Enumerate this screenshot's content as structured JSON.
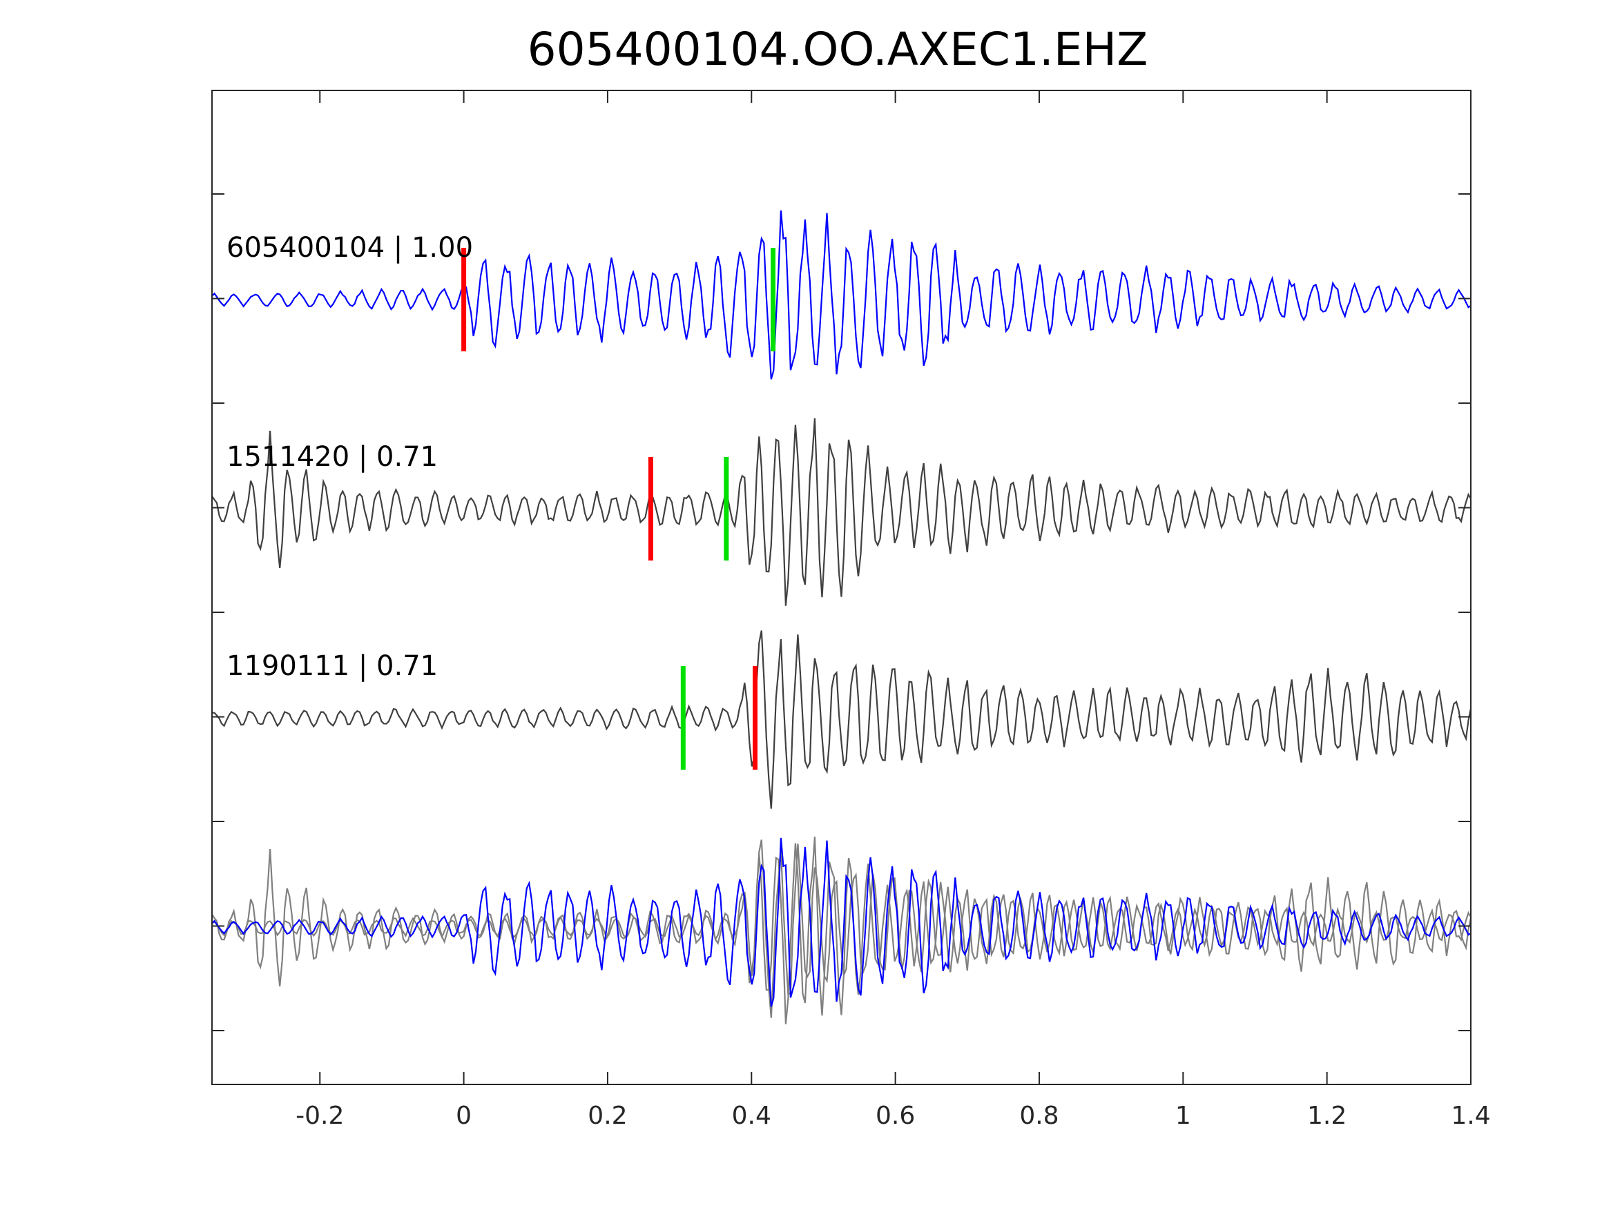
{
  "chart_data": {
    "type": "line",
    "title": "605400104.OO.AXEC1.EHZ",
    "xlim": [
      -0.35,
      1.4
    ],
    "xticks": [
      -0.2,
      0,
      0.2,
      0.4,
      0.6,
      0.8,
      1,
      1.2,
      1.4
    ],
    "xtick_labels": [
      "-0.2",
      "0",
      "0.2",
      "0.4",
      "0.6",
      "0.8",
      "1",
      "1.2",
      "1.4"
    ],
    "xlabel": "",
    "ylabel": "",
    "grid": false,
    "colors": {
      "reference_trace": "#0000ff",
      "matched_trace": "#404040",
      "overlay_trace": "#808080",
      "p_pick": "#ff0000",
      "s_pick": "#00e000",
      "axis": "#262626"
    },
    "traces": [
      {
        "label": "605400104 | 1.00",
        "event_id": "605400104",
        "correlation": 1.0,
        "baseline": 0,
        "color": "reference_trace",
        "p_pick": 0.0,
        "s_pick": 0.43,
        "noise_amp": 0.06,
        "envelope": [
          [
            -0.35,
            0.06
          ],
          [
            0.0,
            0.12
          ],
          [
            0.02,
            0.5
          ],
          [
            0.3,
            0.4
          ],
          [
            0.36,
            0.55
          ],
          [
            0.42,
            0.95
          ],
          [
            0.46,
            1.0
          ],
          [
            0.55,
            0.75
          ],
          [
            0.65,
            0.7
          ],
          [
            0.7,
            0.4
          ],
          [
            0.95,
            0.35
          ],
          [
            1.1,
            0.25
          ],
          [
            1.4,
            0.1
          ]
        ],
        "period": 0.03
      },
      {
        "label": "1511420 | 0.71",
        "event_id": "1511420",
        "correlation": 0.71,
        "baseline": -1,
        "color": "matched_trace",
        "p_pick": 0.26,
        "s_pick": 0.365,
        "noise_amp": 0.15,
        "envelope": [
          [
            -0.35,
            0.15
          ],
          [
            -0.3,
            0.2
          ],
          [
            -0.27,
            0.8
          ],
          [
            -0.24,
            0.5
          ],
          [
            -0.2,
            0.3
          ],
          [
            0.0,
            0.15
          ],
          [
            0.38,
            0.2
          ],
          [
            0.41,
            1.0
          ],
          [
            0.53,
            0.9
          ],
          [
            0.58,
            0.5
          ],
          [
            0.68,
            0.45
          ],
          [
            0.9,
            0.25
          ],
          [
            1.4,
            0.15
          ]
        ],
        "period": 0.026
      },
      {
        "label": "1190111 | 0.71",
        "event_id": "1190111",
        "correlation": 0.71,
        "baseline": -2,
        "color": "matched_trace",
        "p_pick": 0.405,
        "s_pick": 0.305,
        "noise_amp": 0.1,
        "envelope": [
          [
            -0.35,
            0.08
          ],
          [
            0.38,
            0.12
          ],
          [
            0.41,
            1.0
          ],
          [
            0.47,
            0.8
          ],
          [
            0.6,
            0.55
          ],
          [
            0.8,
            0.3
          ],
          [
            1.1,
            0.3
          ],
          [
            1.16,
            0.5
          ],
          [
            1.2,
            0.5
          ],
          [
            1.3,
            0.4
          ],
          [
            1.4,
            0.25
          ]
        ],
        "period": 0.026
      }
    ],
    "overlay": {
      "baseline": -3,
      "description_traces": [
        "605400104",
        "1511420",
        "1190111"
      ]
    }
  }
}
